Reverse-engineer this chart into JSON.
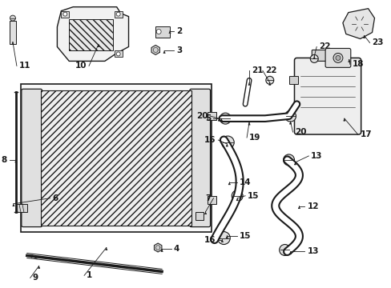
{
  "bg_color": "#ffffff",
  "line_color": "#1a1a1a",
  "fg": "#1a1a1a",
  "fs": 7.0
}
